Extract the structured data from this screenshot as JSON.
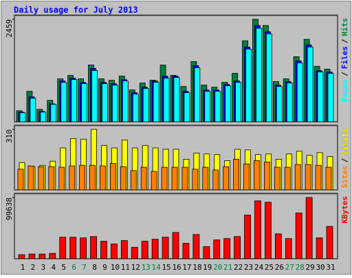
{
  "chart_data": {
    "type": "bar",
    "title": "Daily usage for July 2013",
    "categories": [
      "1",
      "2",
      "3",
      "4",
      "5",
      "6",
      "7",
      "8",
      "9",
      "10",
      "11",
      "12",
      "13",
      "14",
      "15",
      "16",
      "17",
      "18",
      "19",
      "20",
      "21",
      "22",
      "23",
      "24",
      "25",
      "26",
      "27",
      "28",
      "29",
      "30",
      "31"
    ],
    "category_colors": [
      "#000000",
      "#000000",
      "#000000",
      "#000000",
      "#000000",
      "#008040",
      "#008040",
      "#000000",
      "#000000",
      "#000000",
      "#000000",
      "#000000",
      "#008040",
      "#008040",
      "#000000",
      "#000000",
      "#000000",
      "#000000",
      "#000000",
      "#008040",
      "#008040",
      "#000000",
      "#000000",
      "#000000",
      "#000000",
      "#000000",
      "#008040",
      "#008040",
      "#000000",
      "#000000",
      "#000000"
    ],
    "legend_separator": "/",
    "panels": [
      {
        "ylim": [
          0,
          2459
        ],
        "yticks": [
          2459
        ],
        "series": [
          {
            "name": "Hits",
            "color": "#008040",
            "values": [
              266,
              731,
              299,
              515,
              1030,
              1113,
              1030,
              1362,
              1030,
              997,
              1097,
              764,
              930,
              997,
              1362,
              1113,
              847,
              1445,
              880,
              831,
              947,
              1163,
              1944,
              2459,
              2309,
              964,
              1030,
              1561,
              1977,
              1329,
              1263
            ]
          },
          {
            "name": "Files",
            "color": "#0000ff",
            "values": [
              233,
              598,
              249,
              432,
              980,
              1047,
              947,
              1279,
              947,
              914,
              1013,
              698,
              831,
              980,
              1096,
              1096,
              731,
              1345,
              764,
              764,
              897,
              980,
              1794,
              2309,
              2160,
              880,
              964,
              1462,
              1844,
              1229,
              1196
            ]
          },
          {
            "name": "Pages",
            "color": "#00ffff",
            "values": [
              216,
              565,
              232,
              415,
              947,
              1013,
              914,
              1229,
              914,
              880,
              980,
              664,
              797,
              947,
              1047,
              1063,
              698,
              1295,
              731,
              731,
              864,
              947,
              1744,
              2243,
              2110,
              847,
              930,
              1412,
              1794,
              1196,
              1163
            ]
          }
        ]
      },
      {
        "ylim": [
          0,
          310
        ],
        "yticks": [
          310
        ],
        "series": [
          {
            "name": "Visits",
            "color": "#ffff00",
            "values": [
              140,
              119,
              126,
              147,
              215,
              263,
              260,
              310,
              228,
              215,
              256,
              215,
              228,
              215,
              208,
              208,
              157,
              188,
              184,
              181,
              150,
              208,
              205,
              181,
              184,
              157,
              184,
              198,
              177,
              191,
              171
            ]
          },
          {
            "name": "Sites",
            "color": "#ff8000",
            "values": [
              106,
              123,
              119,
              119,
              116,
              123,
              126,
              126,
              123,
              136,
              119,
              99,
              116,
              95,
              116,
              116,
              116,
              106,
              116,
              102,
              119,
              157,
              133,
              150,
              143,
              116,
              116,
              130,
              130,
              126,
              116
            ]
          }
        ]
      },
      {
        "ylim": [
          0,
          99638
        ],
        "yticks": [
          99638
        ],
        "series": [
          {
            "name": "KBytes",
            "color": "#ff0000",
            "values": [
              6570,
              7665,
              7665,
              8760,
              35040,
              35040,
              33945,
              36135,
              28470,
              24090,
              29565,
              18615,
              28470,
              31755,
              35040,
              42705,
              25185,
              39420,
              19710,
              30660,
              32850,
              36135,
              71175,
              94170,
              91980,
              40515,
              32850,
              74460,
              99638,
              33945,
              52560
            ]
          }
        ]
      }
    ]
  }
}
